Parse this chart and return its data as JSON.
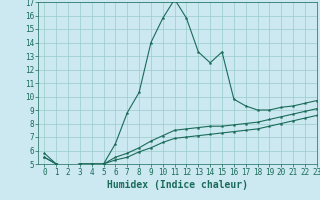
{
  "xlabel": "Humidex (Indice chaleur)",
  "bg_color": "#cce8f0",
  "line_color": "#1a6b5a",
  "grid_color": "#99cccc",
  "x_values": [
    0,
    1,
    2,
    3,
    4,
    5,
    6,
    7,
    8,
    9,
    10,
    11,
    12,
    13,
    14,
    15,
    16,
    17,
    18,
    19,
    20,
    21,
    22,
    23
  ],
  "line1_y": [
    5.8,
    5.0,
    4.8,
    5.0,
    5.0,
    5.0,
    6.5,
    8.8,
    10.3,
    14.0,
    15.8,
    17.2,
    15.8,
    13.3,
    12.5,
    13.3,
    9.8,
    9.3,
    9.0,
    9.0,
    9.2,
    9.3,
    9.5,
    9.7
  ],
  "line2_y": [
    5.5,
    5.0,
    4.8,
    5.0,
    5.0,
    5.0,
    5.5,
    5.8,
    6.2,
    6.7,
    7.1,
    7.5,
    7.6,
    7.7,
    7.8,
    7.8,
    7.9,
    8.0,
    8.1,
    8.3,
    8.5,
    8.7,
    8.9,
    9.1
  ],
  "line3_y": [
    5.5,
    5.0,
    4.8,
    5.0,
    5.0,
    5.0,
    5.3,
    5.5,
    5.9,
    6.2,
    6.6,
    6.9,
    7.0,
    7.1,
    7.2,
    7.3,
    7.4,
    7.5,
    7.6,
    7.8,
    8.0,
    8.2,
    8.4,
    8.6
  ],
  "ylim": [
    5,
    17
  ],
  "xlim": [
    -0.5,
    23
  ],
  "yticks": [
    5,
    6,
    7,
    8,
    9,
    10,
    11,
    12,
    13,
    14,
    15,
    16,
    17
  ],
  "xticks": [
    0,
    1,
    2,
    3,
    4,
    5,
    6,
    7,
    8,
    9,
    10,
    11,
    12,
    13,
    14,
    15,
    16,
    17,
    18,
    19,
    20,
    21,
    22,
    23
  ],
  "tick_label_fontsize": 5.5,
  "xlabel_fontsize": 7.0,
  "marker_size": 2.0,
  "linewidth": 0.8
}
